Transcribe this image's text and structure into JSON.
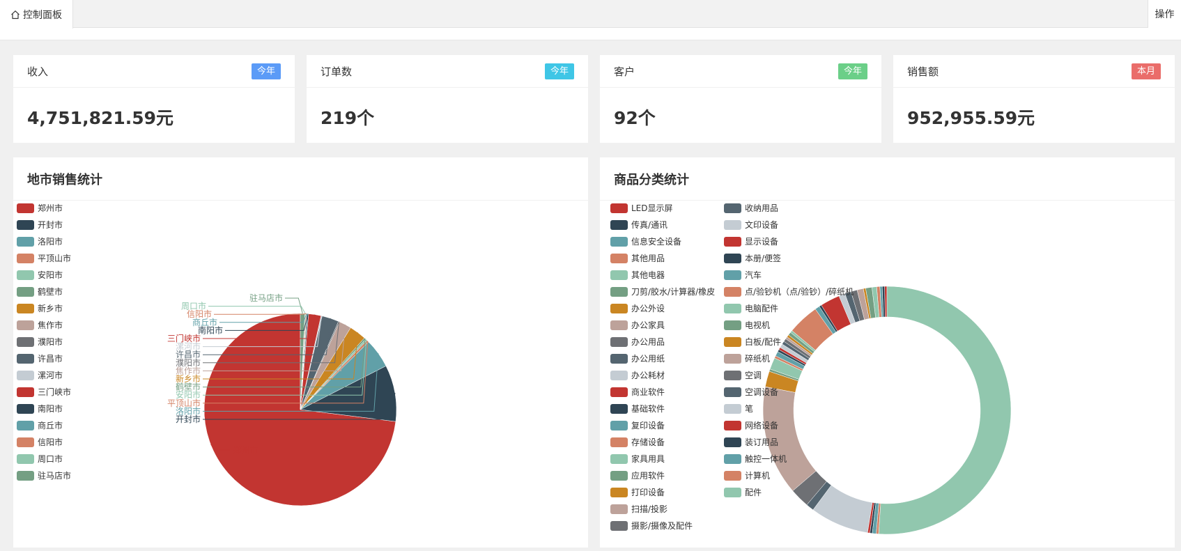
{
  "tabs": {
    "home_label": "控制面板",
    "ops_label": "操作"
  },
  "stats": [
    {
      "title": "收入",
      "badge": "今年",
      "badge_color": "#5b9bf7",
      "value": "4,751,821.59元"
    },
    {
      "title": "订单数",
      "badge": "今年",
      "badge_color": "#3fc6e6",
      "value": "219个"
    },
    {
      "title": "客户",
      "badge": "今年",
      "badge_color": "#6bcf88",
      "value": "92个"
    },
    {
      "title": "销售额",
      "badge": "本月",
      "badge_color": "#ea6d6a",
      "value": "952,955.59元"
    }
  ],
  "city_chart": {
    "title": "地市销售统计",
    "chart_data": {
      "type": "pie",
      "categories": [
        "郑州市",
        "开封市",
        "洛阳市",
        "平顶山市",
        "安阳市",
        "鹤壁市",
        "新乡市",
        "焦作市",
        "濮阳市",
        "许昌市",
        "漯河市",
        "三门峡市",
        "南阳市",
        "商丘市",
        "信阳市",
        "周口市",
        "驻马店市"
      ],
      "values": [
        77.0,
        10.0,
        5.2,
        0.4,
        0.3,
        0.3,
        3.0,
        2.2,
        0.2,
        3.0,
        0.2,
        2.2,
        0.2,
        0.15,
        0.15,
        0.15,
        0.8
      ],
      "colors": [
        "#c23531",
        "#2f4554",
        "#61a0a8",
        "#d48265",
        "#91c7ae",
        "#749f83",
        "#ca8622",
        "#bda29a",
        "#6e7074",
        "#546570",
        "#c4ccd3",
        "#c23531",
        "#2f4554",
        "#61a0a8",
        "#d48265",
        "#91c7ae",
        "#749f83"
      ],
      "legend_position": "left"
    }
  },
  "category_chart": {
    "title": "商品分类统计",
    "chart_data": {
      "type": "pie",
      "categories": [
        "LED显示屏",
        "传真/通讯",
        "信息安全设备",
        "其他用品",
        "其他电器",
        "刀剪/胶水/计算器/橡皮",
        "办公外设",
        "办公家具",
        "办公用品",
        "办公用纸",
        "办公耗材",
        "商业软件",
        "基础软件",
        "复印设备",
        "存储设备",
        "家具用具",
        "应用软件",
        "打印设备",
        "扫描/投影",
        "摄影/摄像及配件",
        "收纳用品",
        "文印设备",
        "显示设备",
        "本册/便签",
        "汽车",
        "点/验钞机（点/验钞）/碎纸机",
        "电脑配件",
        "电视机",
        "白板/配件",
        "碎纸机",
        "空调",
        "空调设备",
        "笔",
        "网络设备",
        "装订用品",
        "触控一体机",
        "计算机",
        "配件"
      ],
      "values": [
        0.3,
        0.3,
        0.3,
        0.4,
        0.6,
        0.8,
        0.3,
        0.8,
        0.8,
        0.8,
        0.8,
        2.5,
        0.3,
        0.6,
        4.0,
        0.3,
        0.4,
        0.3,
        0.3,
        0.4,
        0.4,
        0.5,
        0.3,
        0.3,
        0.6,
        0.3,
        1.5,
        0.3,
        2.0,
        14.0,
        2.5,
        1.0,
        7.5,
        0.3,
        0.3,
        0.5,
        0.3,
        50.0
      ],
      "colors": [
        "#c23531",
        "#2f4554",
        "#61a0a8",
        "#d48265",
        "#91c7ae",
        "#749f83",
        "#ca8622",
        "#bda29a",
        "#6e7074",
        "#546570",
        "#c4ccd3",
        "#c23531",
        "#2f4554",
        "#61a0a8",
        "#d48265",
        "#91c7ae",
        "#749f83",
        "#ca8622",
        "#bda29a",
        "#6e7074",
        "#546570",
        "#c4ccd3",
        "#c23531",
        "#2f4554",
        "#61a0a8",
        "#d48265",
        "#91c7ae",
        "#749f83",
        "#ca8622",
        "#bda29a",
        "#6e7074",
        "#546570",
        "#c4ccd3",
        "#c23531",
        "#2f4554",
        "#61a0a8",
        "#d48265",
        "#91c7ae"
      ],
      "legend_position": "left"
    }
  }
}
